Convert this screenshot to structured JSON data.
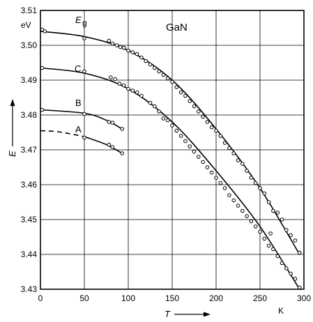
{
  "chart_data": {
    "type": "line",
    "title": "GaN",
    "xlabel": "T",
    "x_unit": "K",
    "ylabel": "E",
    "y_unit": "eV",
    "xlim": [
      0,
      300
    ],
    "ylim": [
      3.43,
      3.51
    ],
    "x_ticks": [
      "0",
      "50",
      "100",
      "150",
      "200",
      "250",
      "300"
    ],
    "y_ticks": [
      "3.43",
      "3.44",
      "3.45",
      "3.46",
      "3.47",
      "3.48",
      "3.49",
      "3.50",
      "3.51"
    ],
    "grid": true,
    "series": [
      {
        "name": "E",
        "name_sub": "g",
        "curve_x": [
          0,
          50,
          100,
          150,
          200,
          250,
          295
        ],
        "curve_y": [
          3.504,
          3.5025,
          3.4985,
          3.49,
          3.476,
          3.459,
          3.44
        ],
        "points": [
          [
            2,
            3.5045
          ],
          [
            5,
            3.504
          ],
          [
            50,
            3.502
          ],
          [
            78,
            3.5013
          ],
          [
            82,
            3.5005
          ],
          [
            87,
            3.5
          ],
          [
            91,
            3.4995
          ],
          [
            95,
            3.4993
          ],
          [
            100,
            3.4985
          ],
          [
            105,
            3.498
          ],
          [
            110,
            3.4975
          ],
          [
            115,
            3.4965
          ],
          [
            120,
            3.4955
          ],
          [
            125,
            3.4945
          ],
          [
            130,
            3.4935
          ],
          [
            135,
            3.4925
          ],
          [
            140,
            3.4915
          ],
          [
            145,
            3.4905
          ],
          [
            150,
            3.4895
          ],
          [
            155,
            3.488
          ],
          [
            160,
            3.4865
          ],
          [
            165,
            3.4855
          ],
          [
            170,
            3.484
          ],
          [
            175,
            3.4825
          ],
          [
            180,
            3.481
          ],
          [
            185,
            3.4795
          ],
          [
            190,
            3.478
          ],
          [
            195,
            3.4765
          ],
          [
            200,
            3.4755
          ],
          [
            205,
            3.474
          ],
          [
            210,
            3.472
          ],
          [
            215,
            3.4705
          ],
          [
            220,
            3.469
          ],
          [
            225,
            3.467
          ],
          [
            230,
            3.466
          ],
          [
            235,
            3.464
          ],
          [
            240,
            3.462
          ],
          [
            245,
            3.4605
          ],
          [
            250,
            3.459
          ],
          [
            255,
            3.4575
          ],
          [
            260,
            3.455
          ],
          [
            265,
            3.4525
          ],
          [
            270,
            3.452
          ],
          [
            275,
            3.45
          ],
          [
            280,
            3.447
          ],
          [
            285,
            3.4455
          ],
          [
            290,
            3.444
          ],
          [
            295,
            3.4405
          ]
        ],
        "dashed_x": []
      },
      {
        "name": "C",
        "curve_x": [
          0,
          50,
          100,
          150,
          200,
          250,
          295
        ],
        "curve_y": [
          3.4935,
          3.492,
          3.4875,
          3.478,
          3.464,
          3.448,
          3.43
        ],
        "points": [
          [
            2,
            3.4935
          ],
          [
            50,
            3.4925
          ],
          [
            80,
            3.4908
          ],
          [
            85,
            3.4903
          ],
          [
            90,
            3.489
          ],
          [
            95,
            3.4885
          ],
          [
            100,
            3.4875
          ],
          [
            105,
            3.487
          ],
          [
            110,
            3.4865
          ],
          [
            115,
            3.4855
          ],
          [
            125,
            3.4835
          ],
          [
            130,
            3.4825
          ],
          [
            135,
            3.481
          ],
          [
            140,
            3.479
          ],
          [
            145,
            3.4785
          ],
          [
            150,
            3.477
          ],
          [
            155,
            3.4755
          ],
          [
            160,
            3.474
          ],
          [
            165,
            3.4725
          ],
          [
            170,
            3.471
          ],
          [
            175,
            3.4695
          ],
          [
            180,
            3.468
          ],
          [
            185,
            3.4665
          ],
          [
            190,
            3.465
          ],
          [
            195,
            3.4635
          ],
          [
            200,
            3.462
          ],
          [
            205,
            3.4605
          ],
          [
            210,
            3.459
          ],
          [
            215,
            3.457
          ],
          [
            220,
            3.4555
          ],
          [
            225,
            3.454
          ],
          [
            230,
            3.4525
          ],
          [
            235,
            3.451
          ],
          [
            240,
            3.4495
          ],
          [
            245,
            3.448
          ],
          [
            250,
            3.4465
          ],
          [
            255,
            3.4445
          ],
          [
            260,
            3.4425
          ],
          [
            262,
            3.446
          ],
          [
            265,
            3.4415
          ],
          [
            270,
            3.4395
          ],
          [
            275,
            3.4375
          ],
          [
            280,
            3.436
          ],
          [
            285,
            3.4345
          ],
          [
            290,
            3.433
          ],
          [
            295,
            3.4305
          ]
        ],
        "dashed_x": []
      },
      {
        "name": "B",
        "curve_x": [
          0,
          50,
          75,
          93
        ],
        "curve_y": [
          3.4815,
          3.4805,
          3.4785,
          3.476
        ],
        "points": [
          [
            2,
            3.4815
          ],
          [
            50,
            3.4803
          ],
          [
            78,
            3.478
          ],
          [
            82,
            3.4778
          ],
          [
            93,
            3.476
          ]
        ],
        "dashed_x": []
      },
      {
        "name": "A",
        "curve_x": [
          0,
          20,
          50,
          75,
          93
        ],
        "curve_y": [
          3.4755,
          3.4752,
          3.4738,
          3.4715,
          3.469
        ],
        "points": [
          [
            50,
            3.4735
          ],
          [
            78,
            3.4715
          ],
          [
            82,
            3.4708
          ],
          [
            93,
            3.469
          ]
        ],
        "dashed_x": [
          0,
          50
        ]
      }
    ]
  }
}
